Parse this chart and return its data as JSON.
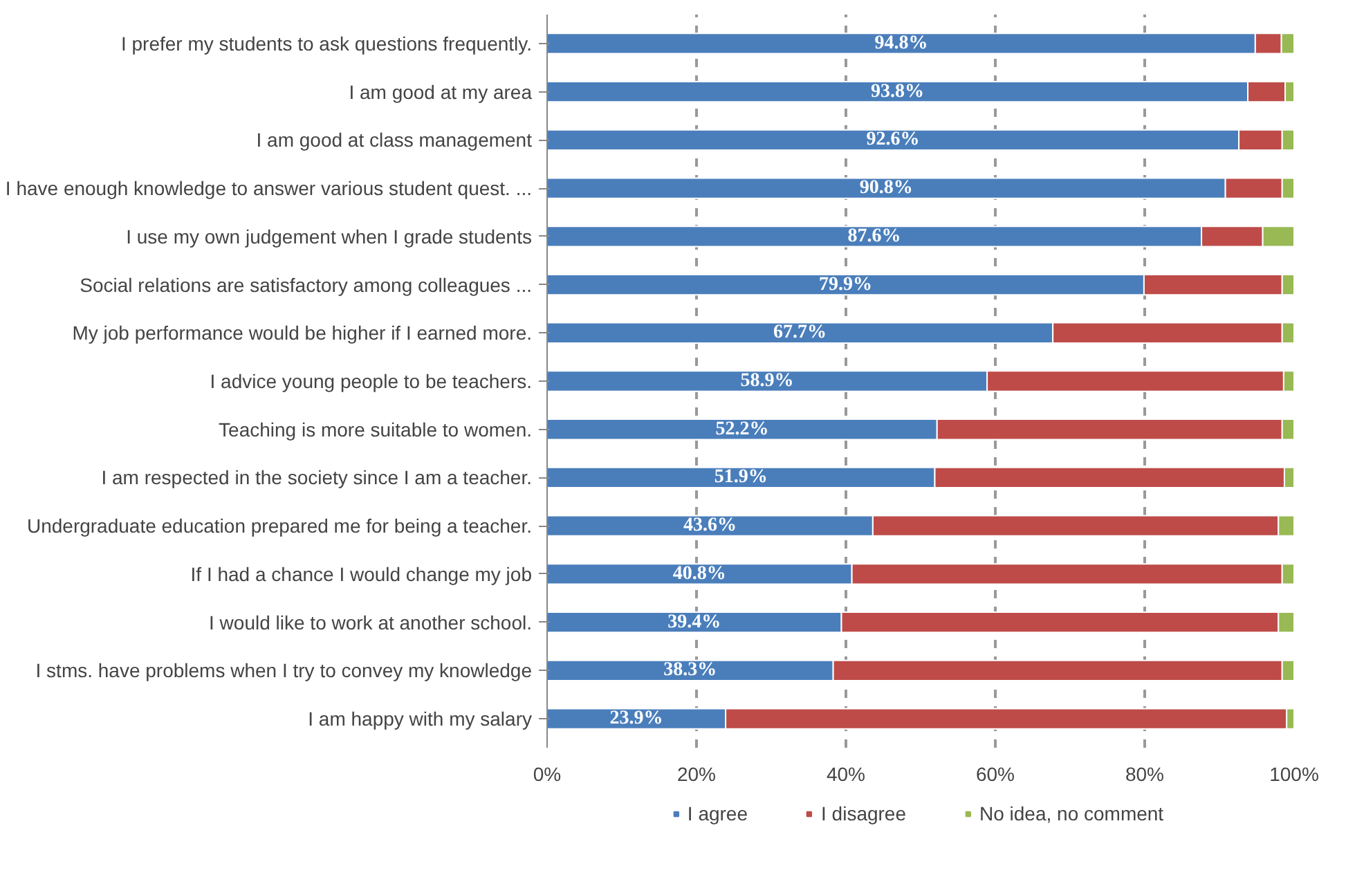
{
  "chart_data": {
    "type": "bar",
    "orientation": "horizontal",
    "stacked": true,
    "categories": [
      "I prefer my students to ask questions frequently.",
      "I am good at my area",
      "I am good at class management",
      "I have enough knowledge to answer various student quest. ...",
      "I use my own judgement when I grade students",
      "Social relations are satisfactory among colleagues ...",
      "My job performance would be higher if I earned more.",
      "I advice young people to be teachers.",
      "Teaching is more suitable to women.",
      "I am respected in the society since I am a teacher.",
      "Undergraduate education prepared me for being a teacher.",
      "If I had a chance I would change my job",
      "I would like to work at another school.",
      "I stms. have problems when I try to convey my knowledge",
      "I am happy with my salary"
    ],
    "series": [
      {
        "name": "I agree",
        "color": "#4a7ebb",
        "values": [
          94.8,
          93.8,
          92.6,
          90.8,
          87.6,
          79.9,
          67.7,
          58.9,
          52.2,
          51.9,
          43.6,
          40.8,
          39.4,
          38.3,
          23.9
        ],
        "value_labels": [
          "94.8%",
          "93.8%",
          "92.6%",
          "90.8%",
          "87.6%",
          "79.9%",
          "67.7%",
          "58.9%",
          "52.2%",
          "51.9%",
          "43.6%",
          "40.8%",
          "39.4%",
          "38.3%",
          "23.9%"
        ]
      },
      {
        "name": "I disagree",
        "color": "#be4b48",
        "values": [
          3.5,
          5.0,
          5.8,
          7.6,
          8.2,
          18.5,
          30.7,
          39.7,
          46.2,
          46.8,
          54.3,
          57.6,
          58.5,
          60.1,
          75.1
        ]
      },
      {
        "name": "No idea, no comment",
        "color": "#98b954",
        "values": [
          1.7,
          1.2,
          1.6,
          1.6,
          4.2,
          1.6,
          1.6,
          1.4,
          1.6,
          1.3,
          2.1,
          1.6,
          2.1,
          1.6,
          1.0
        ]
      }
    ],
    "xlim": [
      0,
      100
    ],
    "xticks": [
      {
        "value": 0,
        "label": "0%"
      },
      {
        "value": 20,
        "label": "20%"
      },
      {
        "value": 40,
        "label": "40%"
      },
      {
        "value": 60,
        "label": "60%"
      },
      {
        "value": 80,
        "label": "80%"
      },
      {
        "value": 100,
        "label": "100%"
      }
    ],
    "grid": "x",
    "legend": "bottom"
  }
}
